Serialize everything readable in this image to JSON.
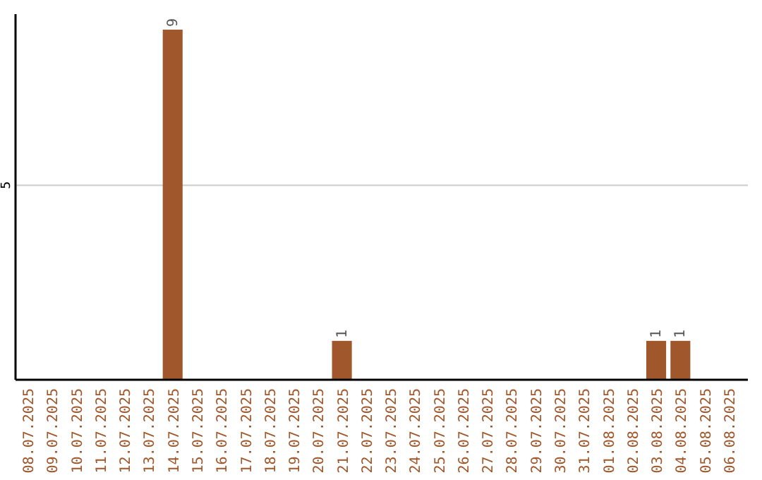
{
  "chart_data": {
    "type": "bar",
    "categories": [
      "08.07.2025",
      "09.07.2025",
      "10.07.2025",
      "11.07.2025",
      "12.07.2025",
      "13.07.2025",
      "14.07.2025",
      "15.07.2025",
      "16.07.2025",
      "17.07.2025",
      "18.07.2025",
      "19.07.2025",
      "20.07.2025",
      "21.07.2025",
      "22.07.2025",
      "23.07.2025",
      "24.07.2025",
      "25.07.2025",
      "26.07.2025",
      "27.07.2025",
      "28.07.2025",
      "29.07.2025",
      "30.07.2025",
      "31.07.2025",
      "01.08.2025",
      "02.08.2025",
      "03.08.2025",
      "04.08.2025",
      "05.08.2025",
      "06.08.2025"
    ],
    "values": [
      0,
      0,
      0,
      0,
      0,
      0,
      9,
      0,
      0,
      0,
      0,
      0,
      0,
      1,
      0,
      0,
      0,
      0,
      0,
      0,
      0,
      0,
      0,
      0,
      0,
      0,
      1,
      1,
      0,
      0
    ],
    "value_labels": [
      null,
      null,
      null,
      null,
      null,
      null,
      "9",
      null,
      null,
      null,
      null,
      null,
      null,
      "1",
      null,
      null,
      null,
      null,
      null,
      null,
      null,
      null,
      null,
      null,
      null,
      null,
      "1",
      "1",
      null,
      null
    ],
    "color": "#a0572b",
    "ylim": [
      0,
      9.4
    ],
    "yticks": [
      5
    ],
    "grid": "y"
  }
}
